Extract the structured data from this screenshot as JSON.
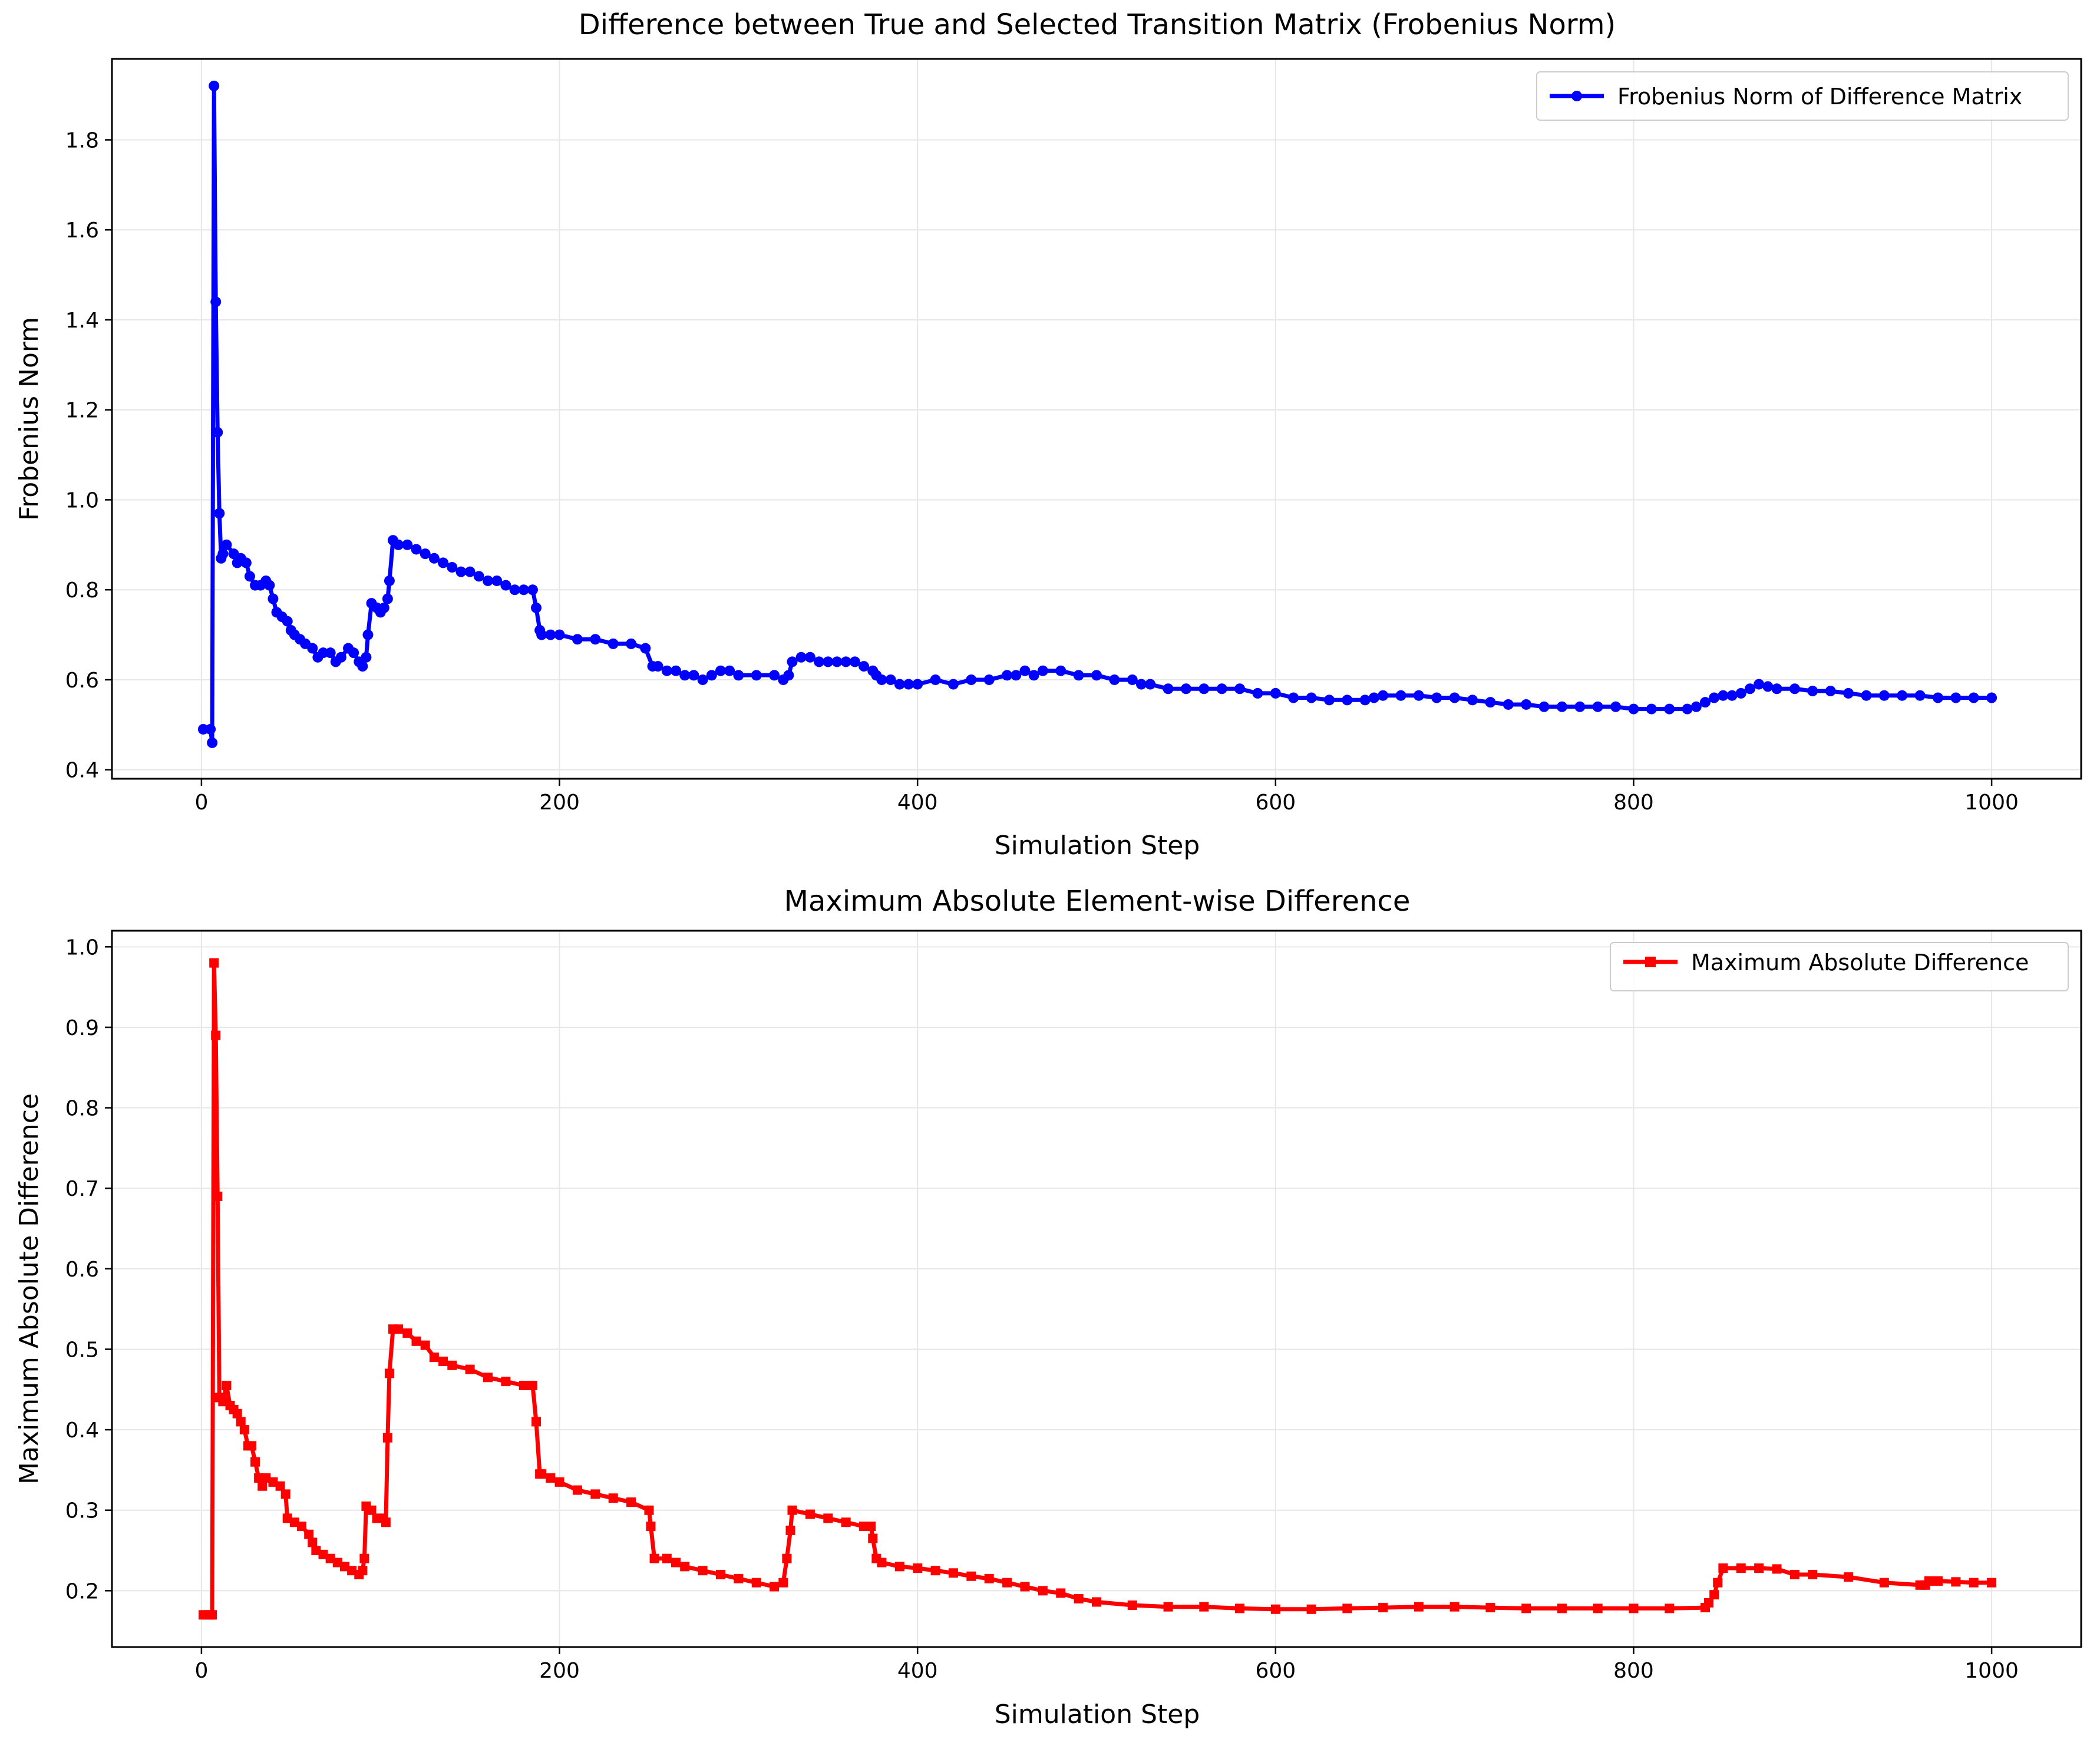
{
  "chart_data": [
    {
      "type": "line",
      "title": "Difference between True and Selected Transition Matrix (Frobenius Norm)",
      "xlabel": "Simulation Step",
      "ylabel": "Frobenius Norm",
      "xlim": [
        -50,
        1050
      ],
      "ylim": [
        0.38,
        1.98
      ],
      "xticks": [
        0,
        200,
        400,
        600,
        800,
        1000
      ],
      "yticks": [
        0.4,
        0.6,
        0.8,
        1.0,
        1.2,
        1.4,
        1.6,
        1.8
      ],
      "ytick_labels": [
        "0.4",
        "0.6",
        "0.8",
        "1.0",
        "1.2",
        "1.4",
        "1.6",
        "1.8"
      ],
      "grid": true,
      "legend_position": "top-right",
      "marker": "circle",
      "color": "#0000ff",
      "series": [
        {
          "name": "Frobenius Norm of Difference Matrix",
          "x": [
            1,
            5,
            6,
            7,
            8,
            9,
            10,
            11,
            12,
            14,
            18,
            20,
            22,
            25,
            27,
            30,
            33,
            36,
            38,
            40,
            42,
            45,
            48,
            50,
            52,
            55,
            58,
            62,
            65,
            68,
            72,
            75,
            78,
            82,
            85,
            88,
            90,
            92,
            93,
            95,
            98,
            100,
            102,
            104,
            105,
            107,
            110,
            115,
            120,
            125,
            130,
            135,
            140,
            145,
            150,
            155,
            160,
            165,
            170,
            175,
            180,
            185,
            187,
            189,
            190,
            195,
            200,
            210,
            220,
            230,
            240,
            248,
            252,
            255,
            260,
            265,
            270,
            275,
            280,
            285,
            290,
            295,
            300,
            310,
            320,
            325,
            328,
            330,
            335,
            340,
            345,
            350,
            355,
            360,
            365,
            370,
            375,
            377,
            380,
            385,
            390,
            395,
            400,
            410,
            420,
            430,
            440,
            450,
            455,
            460,
            465,
            470,
            480,
            490,
            500,
            510,
            520,
            525,
            530,
            540,
            550,
            560,
            570,
            580,
            590,
            600,
            610,
            620,
            630,
            640,
            650,
            655,
            660,
            670,
            680,
            690,
            700,
            710,
            720,
            730,
            740,
            750,
            760,
            770,
            780,
            790,
            800,
            810,
            820,
            830,
            835,
            840,
            845,
            850,
            855,
            860,
            865,
            870,
            875,
            880,
            890,
            900,
            910,
            920,
            930,
            940,
            950,
            960,
            970,
            980,
            990,
            1000
          ],
          "y": [
            0.49,
            0.49,
            0.46,
            1.92,
            1.44,
            1.15,
            0.97,
            0.87,
            0.88,
            0.9,
            0.88,
            0.86,
            0.87,
            0.86,
            0.83,
            0.81,
            0.81,
            0.82,
            0.81,
            0.78,
            0.75,
            0.74,
            0.73,
            0.71,
            0.7,
            0.69,
            0.68,
            0.67,
            0.65,
            0.66,
            0.66,
            0.64,
            0.65,
            0.67,
            0.66,
            0.64,
            0.63,
            0.65,
            0.7,
            0.77,
            0.76,
            0.75,
            0.76,
            0.78,
            0.82,
            0.91,
            0.9,
            0.9,
            0.89,
            0.88,
            0.87,
            0.86,
            0.85,
            0.84,
            0.84,
            0.83,
            0.82,
            0.82,
            0.81,
            0.8,
            0.8,
            0.8,
            0.76,
            0.71,
            0.7,
            0.7,
            0.7,
            0.69,
            0.69,
            0.68,
            0.68,
            0.67,
            0.63,
            0.63,
            0.62,
            0.62,
            0.61,
            0.61,
            0.6,
            0.61,
            0.62,
            0.62,
            0.61,
            0.61,
            0.61,
            0.6,
            0.61,
            0.64,
            0.65,
            0.65,
            0.64,
            0.64,
            0.64,
            0.64,
            0.64,
            0.63,
            0.62,
            0.61,
            0.6,
            0.6,
            0.59,
            0.59,
            0.59,
            0.6,
            0.59,
            0.6,
            0.6,
            0.61,
            0.61,
            0.62,
            0.61,
            0.62,
            0.62,
            0.61,
            0.61,
            0.6,
            0.6,
            0.59,
            0.59,
            0.58,
            0.58,
            0.58,
            0.58,
            0.58,
            0.57,
            0.57,
            0.56,
            0.56,
            0.555,
            0.555,
            0.555,
            0.56,
            0.565,
            0.565,
            0.565,
            0.56,
            0.56,
            0.555,
            0.55,
            0.545,
            0.545,
            0.54,
            0.54,
            0.54,
            0.54,
            0.54,
            0.535,
            0.535,
            0.535,
            0.535,
            0.54,
            0.55,
            0.56,
            0.565,
            0.565,
            0.57,
            0.58,
            0.59,
            0.585,
            0.58,
            0.58,
            0.575,
            0.575,
            0.57,
            0.565,
            0.565,
            0.565,
            0.565,
            0.56,
            0.56,
            0.56,
            0.56
          ]
        }
      ]
    },
    {
      "type": "line",
      "title": "Maximum Absolute Element-wise Difference",
      "xlabel": "Simulation Step",
      "ylabel": "Maximum Absolute Difference",
      "xlim": [
        -50,
        1050
      ],
      "ylim": [
        0.13,
        1.02
      ],
      "xticks": [
        0,
        200,
        400,
        600,
        800,
        1000
      ],
      "yticks": [
        0.2,
        0.3,
        0.4,
        0.5,
        0.6,
        0.7,
        0.8,
        0.9,
        1.0
      ],
      "ytick_labels": [
        "0.2",
        "0.3",
        "0.4",
        "0.5",
        "0.6",
        "0.7",
        "0.8",
        "0.9",
        "1.0"
      ],
      "grid": true,
      "legend_position": "top-right",
      "marker": "square",
      "color": "#ff0000",
      "series": [
        {
          "name": "Maximum Absolute Difference",
          "x": [
            1,
            3,
            5,
            6,
            7,
            8,
            9,
            10,
            11,
            12,
            14,
            16,
            18,
            20,
            22,
            24,
            26,
            28,
            30,
            32,
            34,
            36,
            40,
            44,
            47,
            48,
            52,
            56,
            60,
            62,
            64,
            68,
            72,
            76,
            80,
            84,
            88,
            90,
            91,
            92,
            95,
            98,
            101,
            103,
            104,
            105,
            107,
            110,
            115,
            120,
            125,
            130,
            135,
            140,
            150,
            160,
            170,
            180,
            185,
            187,
            189,
            190,
            195,
            200,
            210,
            220,
            230,
            240,
            250,
            251,
            253,
            260,
            265,
            270,
            280,
            290,
            300,
            310,
            320,
            325,
            327,
            329,
            330,
            340,
            350,
            360,
            370,
            374,
            375,
            377,
            380,
            390,
            400,
            410,
            420,
            430,
            440,
            450,
            460,
            470,
            480,
            490,
            500,
            520,
            540,
            560,
            580,
            600,
            620,
            640,
            660,
            680,
            700,
            720,
            740,
            760,
            780,
            800,
            820,
            840,
            842,
            845,
            847,
            850,
            860,
            870,
            880,
            890,
            900,
            920,
            940,
            960,
            963,
            965,
            970,
            980,
            990,
            1000
          ],
          "y": [
            0.17,
            0.17,
            0.17,
            0.17,
            0.98,
            0.89,
            0.69,
            0.44,
            0.44,
            0.435,
            0.455,
            0.43,
            0.425,
            0.42,
            0.41,
            0.4,
            0.38,
            0.38,
            0.36,
            0.34,
            0.33,
            0.34,
            0.335,
            0.33,
            0.32,
            0.29,
            0.285,
            0.28,
            0.27,
            0.26,
            0.25,
            0.245,
            0.24,
            0.235,
            0.23,
            0.225,
            0.22,
            0.225,
            0.24,
            0.305,
            0.3,
            0.29,
            0.29,
            0.285,
            0.39,
            0.47,
            0.525,
            0.525,
            0.52,
            0.51,
            0.505,
            0.49,
            0.485,
            0.48,
            0.475,
            0.465,
            0.46,
            0.455,
            0.455,
            0.41,
            0.345,
            0.345,
            0.34,
            0.335,
            0.325,
            0.32,
            0.315,
            0.31,
            0.3,
            0.28,
            0.24,
            0.24,
            0.235,
            0.23,
            0.225,
            0.22,
            0.215,
            0.21,
            0.205,
            0.21,
            0.24,
            0.275,
            0.3,
            0.295,
            0.29,
            0.285,
            0.28,
            0.28,
            0.265,
            0.24,
            0.235,
            0.23,
            0.228,
            0.225,
            0.222,
            0.218,
            0.215,
            0.21,
            0.205,
            0.2,
            0.197,
            0.19,
            0.186,
            0.182,
            0.18,
            0.18,
            0.178,
            0.177,
            0.177,
            0.178,
            0.179,
            0.18,
            0.18,
            0.179,
            0.178,
            0.178,
            0.178,
            0.178,
            0.178,
            0.179,
            0.185,
            0.195,
            0.21,
            0.228,
            0.228,
            0.228,
            0.227,
            0.22,
            0.22,
            0.217,
            0.21,
            0.207,
            0.207,
            0.212,
            0.212,
            0.211,
            0.21,
            0.21
          ]
        }
      ]
    }
  ]
}
